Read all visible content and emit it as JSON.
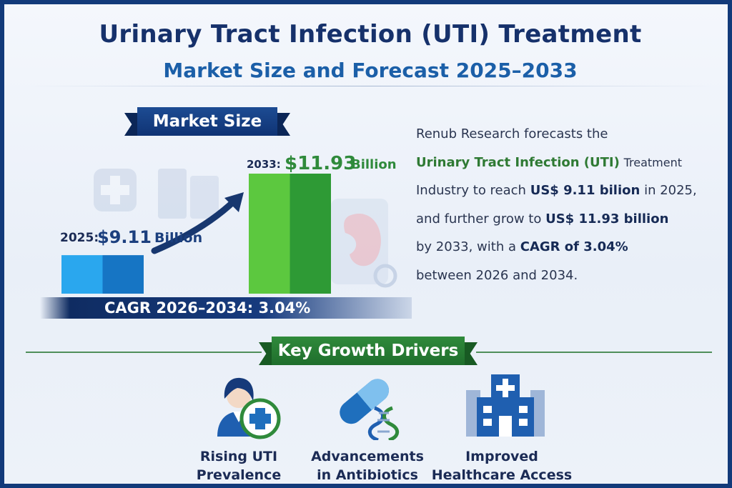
{
  "header": {
    "title": "Urinary Tract Infection (UTI) Treatment",
    "subtitle": "Market Size and Forecast 2025–2033"
  },
  "market_size": {
    "ribbon_label": "Market Size",
    "cagr_label": "CAGR 2026–2034: 3.04%",
    "label_2025_year": "2025:",
    "label_2025_value": "$9.11",
    "label_2025_unit": "Billion",
    "label_2033_year": "2033:",
    "label_2033_value": "$11.93",
    "label_2033_unit": "Billion"
  },
  "description": {
    "l1": "Renub Research forecasts the",
    "l2a": "Urinary Tract Infection (UTI)",
    "l2b": "Treatment",
    "l3a": "Industry to reach",
    "l3b": "US$ 9.11 bilion",
    "l3c": "in 2025,",
    "l4a": "and further grow to",
    "l4b": "US$ 11.93 billion",
    "l5a": "by 2033, with a",
    "l5b": "CAGR of 3.04%",
    "l6": "between 2026 and 2034."
  },
  "drivers": {
    "ribbon_label": "Key Growth Drivers",
    "items": [
      {
        "line1": "Rising UTI",
        "line2": "Prevalence",
        "icon": "doctor-plus-icon"
      },
      {
        "line1": "Advancements",
        "line2": "in Antibiotics",
        "icon": "capsule-dna-icon"
      },
      {
        "line1": "Improved",
        "line2": "Healthcare Access",
        "icon": "hospital-icon"
      }
    ]
  },
  "colors": {
    "navy": "#16316b",
    "blue": "#1b5fa8",
    "green": "#2f8a3b",
    "bar_2025": "#1e8fd8",
    "bar_2033": "#3eae3a"
  },
  "chart_data": {
    "type": "bar",
    "categories": [
      "2025",
      "2033"
    ],
    "values": [
      9.11,
      11.93
    ],
    "unit": "US$ Billion",
    "title": "",
    "xlabel": "",
    "ylabel": "",
    "ylim": [
      0,
      12
    ],
    "grid": false,
    "legend": "none",
    "annotations": [
      "2025:$9.11 Billion",
      "2033:$11.93 Billion",
      "CAGR 2026–2034: 3.04%"
    ]
  }
}
